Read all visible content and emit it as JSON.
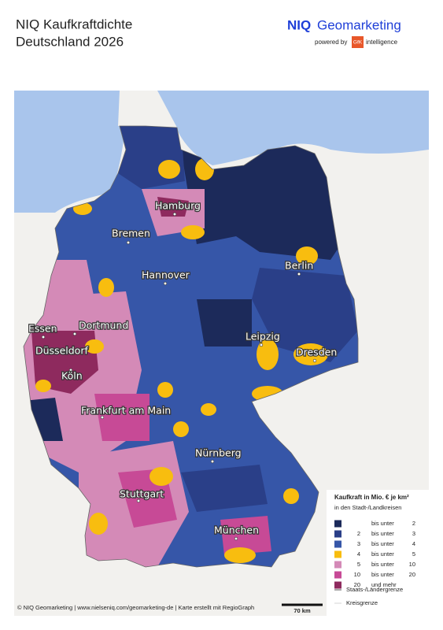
{
  "header": {
    "title_line1": "NIQ Kaufkraftdichte",
    "title_line2": "Deutschland 2026",
    "logo_brand": "NIQ",
    "logo_name": "Geomarketing",
    "logo_powered": "powered by",
    "logo_gfk": "GfK",
    "logo_intel": "intelligence"
  },
  "cities": [
    {
      "label": "Hamburg"
    },
    {
      "label": "Bremen"
    },
    {
      "label": "Berlin"
    },
    {
      "label": "Hannover"
    },
    {
      "label": "Essen"
    },
    {
      "label": "Dortmund"
    },
    {
      "label": "Düsseldorf"
    },
    {
      "label": "Leipzig"
    },
    {
      "label": "Dresden"
    },
    {
      "label": "Köln"
    },
    {
      "label": "Frankfurt am Main"
    },
    {
      "label": "Nürnberg"
    },
    {
      "label": "Stuttgart"
    },
    {
      "label": "München"
    }
  ],
  "legend": {
    "title": "Kaufkraft in Mio. € je km²",
    "subtitle": "in den Stadt-/Landkreisen",
    "classes": [
      {
        "from": null,
        "op": "bis unter",
        "to": 2,
        "color": "#1c2a5a"
      },
      {
        "from": 2,
        "op": "bis unter",
        "to": 3,
        "color": "#2a3f88"
      },
      {
        "from": 3,
        "op": "bis unter",
        "to": 4,
        "color": "#3656a8"
      },
      {
        "from": 4,
        "op": "bis unter",
        "to": 5,
        "color": "#f8bd0f"
      },
      {
        "from": 5,
        "op": "bis unter",
        "to": 10,
        "color": "#d48ab7"
      },
      {
        "from": 10,
        "op": "bis unter",
        "to": 20,
        "color": "#c74a96"
      },
      {
        "from": 20,
        "op": "und mehr",
        "to": null,
        "color": "#8e2a5e"
      }
    ],
    "lines": [
      {
        "label": "Staats-/Ländergrenze"
      },
      {
        "label": "Kreisgrenze"
      }
    ]
  },
  "scale": {
    "label": "70 km"
  },
  "footer": "© NIQ Geomarketing | www.nielseniq.com/geomarketing-de | Karte erstellt mit RegioGraph"
}
